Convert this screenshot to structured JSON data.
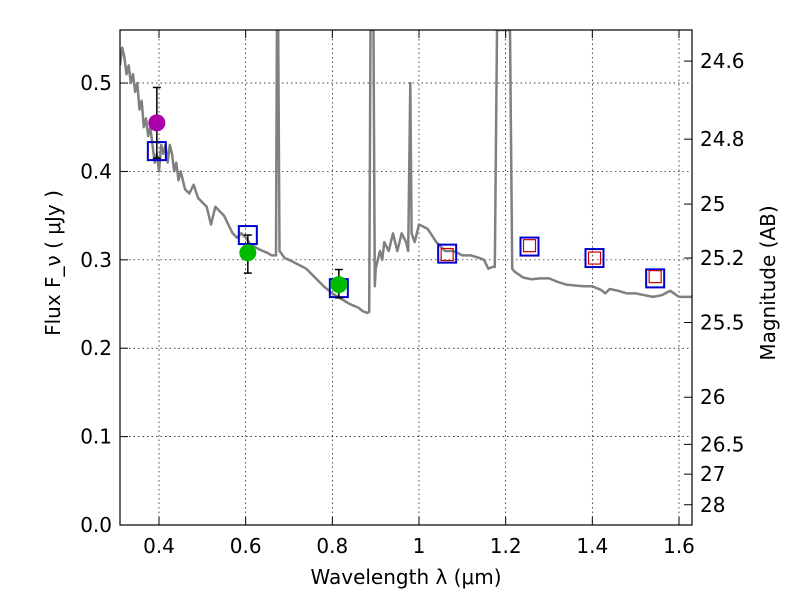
{
  "chart_data": {
    "type": "scatter",
    "xlabel": "Wavelength  λ (μm)",
    "ylabel": "Flux  F_ν  ( μJy )",
    "ylabel_right": "Magnitude (AB)",
    "xlim": [
      0.31,
      1.63
    ],
    "ylim": [
      0.0,
      0.56
    ],
    "grid": true,
    "x_ticks": [
      {
        "value": 0.4,
        "label": "0.4"
      },
      {
        "value": 0.6,
        "label": "0.6"
      },
      {
        "value": 0.8,
        "label": "0.8"
      },
      {
        "value": 1.0,
        "label": "1"
      },
      {
        "value": 1.2,
        "label": "1.2"
      },
      {
        "value": 1.4,
        "label": "1.4"
      },
      {
        "value": 1.6,
        "label": "1.6"
      }
    ],
    "y_ticks": [
      {
        "value": 0.0,
        "label": "0.0"
      },
      {
        "value": 0.1,
        "label": "0.1"
      },
      {
        "value": 0.2,
        "label": "0.2"
      },
      {
        "value": 0.3,
        "label": "0.3"
      },
      {
        "value": 0.4,
        "label": "0.4"
      },
      {
        "value": 0.5,
        "label": "0.5"
      }
    ],
    "right_ticks": [
      {
        "value": 24.6,
        "label": "24.6"
      },
      {
        "value": 24.8,
        "label": "24.8"
      },
      {
        "value": 25.0,
        "label": "25"
      },
      {
        "value": 25.2,
        "label": "25.2"
      },
      {
        "value": 25.5,
        "label": "25.5"
      },
      {
        "value": 26.0,
        "label": "26"
      },
      {
        "value": 26.5,
        "label": "26.5"
      },
      {
        "value": 27.0,
        "label": "27"
      },
      {
        "value": 28.0,
        "label": "28"
      }
    ],
    "series": [
      {
        "kind": "line",
        "color": "#808080",
        "points": [
          [
            0.31,
            0.52
          ],
          [
            0.315,
            0.54
          ],
          [
            0.32,
            0.53
          ],
          [
            0.325,
            0.51
          ],
          [
            0.33,
            0.52
          ],
          [
            0.335,
            0.5
          ],
          [
            0.34,
            0.51
          ],
          [
            0.345,
            0.49
          ],
          [
            0.35,
            0.5
          ],
          [
            0.355,
            0.47
          ],
          [
            0.36,
            0.48
          ],
          [
            0.365,
            0.45
          ],
          [
            0.37,
            0.46
          ],
          [
            0.375,
            0.44
          ],
          [
            0.38,
            0.45
          ],
          [
            0.385,
            0.43
          ],
          [
            0.39,
            0.41
          ],
          [
            0.395,
            0.42
          ],
          [
            0.4,
            0.4
          ],
          [
            0.405,
            0.43
          ],
          [
            0.41,
            0.42
          ],
          [
            0.415,
            0.43
          ],
          [
            0.42,
            0.41
          ],
          [
            0.425,
            0.43
          ],
          [
            0.43,
            0.42
          ],
          [
            0.435,
            0.4
          ],
          [
            0.44,
            0.41
          ],
          [
            0.445,
            0.39
          ],
          [
            0.45,
            0.4
          ],
          [
            0.46,
            0.38
          ],
          [
            0.47,
            0.375
          ],
          [
            0.48,
            0.385
          ],
          [
            0.49,
            0.37
          ],
          [
            0.5,
            0.365
          ],
          [
            0.51,
            0.36
          ],
          [
            0.52,
            0.34
          ],
          [
            0.525,
            0.35
          ],
          [
            0.53,
            0.36
          ],
          [
            0.54,
            0.355
          ],
          [
            0.55,
            0.35
          ],
          [
            0.56,
            0.34
          ],
          [
            0.57,
            0.33
          ],
          [
            0.58,
            0.325
          ],
          [
            0.59,
            0.33
          ],
          [
            0.6,
            0.325
          ],
          [
            0.61,
            0.318
          ],
          [
            0.62,
            0.315
          ],
          [
            0.63,
            0.312
          ],
          [
            0.64,
            0.31
          ],
          [
            0.65,
            0.308
          ],
          [
            0.66,
            0.305
          ],
          [
            0.67,
            0.305
          ],
          [
            0.672,
            0.56
          ],
          [
            0.675,
            0.56
          ],
          [
            0.678,
            0.31
          ],
          [
            0.69,
            0.302
          ],
          [
            0.7,
            0.3
          ],
          [
            0.72,
            0.295
          ],
          [
            0.74,
            0.29
          ],
          [
            0.75,
            0.285
          ],
          [
            0.76,
            0.28
          ],
          [
            0.78,
            0.27
          ],
          [
            0.8,
            0.262
          ],
          [
            0.82,
            0.256
          ],
          [
            0.84,
            0.25
          ],
          [
            0.85,
            0.248
          ],
          [
            0.86,
            0.246
          ],
          [
            0.87,
            0.242
          ],
          [
            0.88,
            0.24
          ],
          [
            0.885,
            0.241
          ],
          [
            0.888,
            0.56
          ],
          [
            0.895,
            0.56
          ],
          [
            0.898,
            0.27
          ],
          [
            0.9,
            0.29
          ],
          [
            0.905,
            0.3
          ],
          [
            0.91,
            0.31
          ],
          [
            0.915,
            0.3
          ],
          [
            0.92,
            0.32
          ],
          [
            0.93,
            0.31
          ],
          [
            0.94,
            0.33
          ],
          [
            0.95,
            0.31
          ],
          [
            0.96,
            0.33
          ],
          [
            0.97,
            0.32
          ],
          [
            0.975,
            0.31
          ],
          [
            0.98,
            0.5
          ],
          [
            0.983,
            0.33
          ],
          [
            0.99,
            0.32
          ],
          [
            1.0,
            0.34
          ],
          [
            1.02,
            0.335
          ],
          [
            1.04,
            0.32
          ],
          [
            1.06,
            0.31
          ],
          [
            1.08,
            0.31
          ],
          [
            1.1,
            0.305
          ],
          [
            1.12,
            0.305
          ],
          [
            1.14,
            0.302
          ],
          [
            1.15,
            0.3
          ],
          [
            1.16,
            0.29
          ],
          [
            1.17,
            0.292
          ],
          [
            1.175,
            0.292
          ],
          [
            1.18,
            0.56
          ],
          [
            1.21,
            0.56
          ],
          [
            1.215,
            0.29
          ],
          [
            1.22,
            0.287
          ],
          [
            1.24,
            0.28
          ],
          [
            1.26,
            0.278
          ],
          [
            1.28,
            0.279
          ],
          [
            1.3,
            0.279
          ],
          [
            1.32,
            0.275
          ],
          [
            1.34,
            0.272
          ],
          [
            1.36,
            0.271
          ],
          [
            1.38,
            0.27
          ],
          [
            1.4,
            0.27
          ],
          [
            1.42,
            0.266
          ],
          [
            1.43,
            0.262
          ],
          [
            1.44,
            0.267
          ],
          [
            1.46,
            0.265
          ],
          [
            1.48,
            0.262
          ],
          [
            1.5,
            0.262
          ],
          [
            1.52,
            0.26
          ],
          [
            1.54,
            0.258
          ],
          [
            1.56,
            0.26
          ],
          [
            1.58,
            0.265
          ],
          [
            1.6,
            0.258
          ],
          [
            1.63,
            0.258
          ]
        ]
      },
      {
        "kind": "square",
        "color": "#0000cc",
        "points": [
          [
            0.395,
            0.423
          ],
          [
            0.605,
            0.328
          ],
          [
            0.815,
            0.268
          ],
          [
            1.065,
            0.307
          ],
          [
            1.255,
            0.315
          ],
          [
            1.405,
            0.302
          ],
          [
            1.545,
            0.279
          ]
        ]
      },
      {
        "kind": "small-square",
        "color": "#cc0000",
        "points": [
          [
            1.065,
            0.306
          ],
          [
            1.255,
            0.316
          ],
          [
            1.405,
            0.302
          ],
          [
            1.545,
            0.281
          ]
        ]
      },
      {
        "kind": "circle",
        "color": "#aa00aa",
        "points": [
          [
            0.395,
            0.455
          ]
        ],
        "errors": [
          [
            0.415,
            0.495
          ]
        ]
      },
      {
        "kind": "circle",
        "color": "#00bb00",
        "points": [
          [
            0.605,
            0.308
          ],
          [
            0.815,
            0.272
          ]
        ],
        "errors": [
          [
            0.285,
            0.328
          ],
          [
            0.257,
            0.289
          ]
        ]
      }
    ]
  }
}
